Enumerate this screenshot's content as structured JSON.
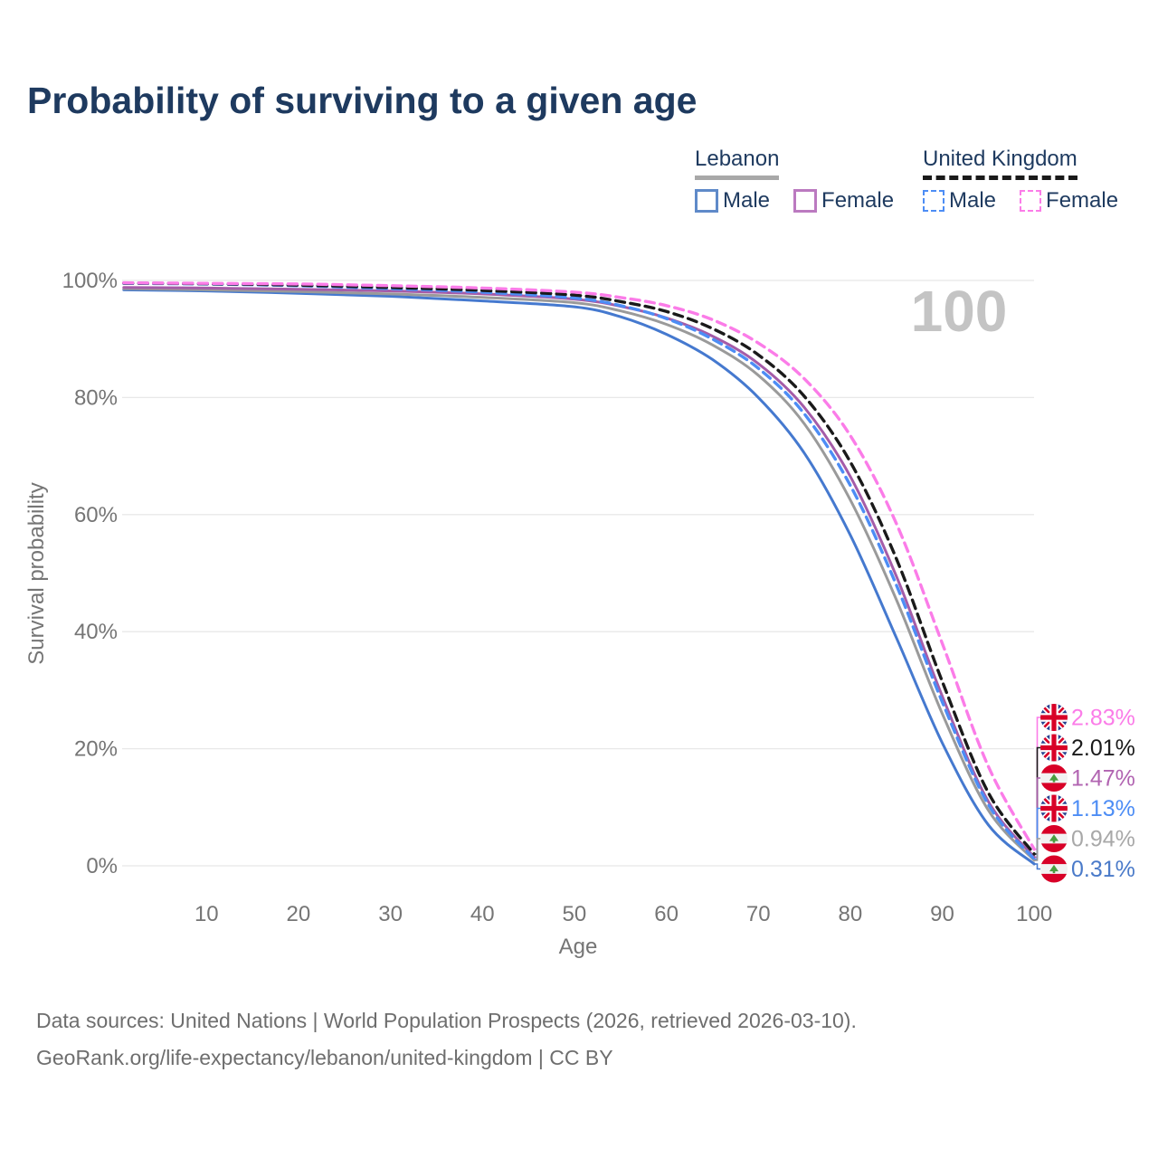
{
  "title": "Probability of surviving to a given age",
  "legend": {
    "groups": [
      {
        "name": "Lebanon",
        "line_style": "solid",
        "underline_color": "#a8a8a8",
        "items": [
          {
            "label": "Male",
            "color": "#5f8ac9"
          },
          {
            "label": "Female",
            "color": "#bb7ac0"
          }
        ]
      },
      {
        "name": "United Kingdom",
        "line_style": "dashed",
        "underline_color": "#1a1a1a",
        "items": [
          {
            "label": "Male",
            "color": "#4d8df5"
          },
          {
            "label": "Female",
            "color": "#fb7ce8"
          }
        ]
      }
    ]
  },
  "chart_data": {
    "type": "line",
    "title": "Probability of surviving to a given age",
    "xlabel": "Age",
    "ylabel": "Survival probability",
    "xlim": [
      0,
      100
    ],
    "ylim": [
      0,
      100
    ],
    "grid": "horizontal",
    "x_ticks": [
      10,
      20,
      30,
      40,
      50,
      60,
      70,
      80,
      90,
      100
    ],
    "y_ticks": [
      {
        "value": 0,
        "label": "0%"
      },
      {
        "value": 20,
        "label": "20%"
      },
      {
        "value": 40,
        "label": "40%"
      },
      {
        "value": 60,
        "label": "60%"
      },
      {
        "value": 80,
        "label": "80%"
      },
      {
        "value": 100,
        "label": "100%"
      }
    ],
    "hover_age_annotation": "100",
    "x": [
      1,
      10,
      20,
      30,
      40,
      50,
      55,
      60,
      65,
      70,
      75,
      80,
      85,
      90,
      95,
      100
    ],
    "series": [
      {
        "name": "Lebanon Male",
        "country": "Lebanon",
        "sex": "Male",
        "color": "#4579cf",
        "dash": false,
        "values": [
          98.4,
          98.2,
          97.8,
          97.3,
          96.5,
          95.5,
          93.8,
          90.8,
          86.5,
          80.0,
          70.5,
          56.5,
          39.0,
          21.0,
          7.0,
          0.31
        ]
      },
      {
        "name": "Lebanon All",
        "country": "Lebanon",
        "sex": "All",
        "color": "#9a9a9a",
        "dash": false,
        "values": [
          98.6,
          98.4,
          98.1,
          97.7,
          97.1,
          96.2,
          94.8,
          92.5,
          89.0,
          83.8,
          75.5,
          62.5,
          45.5,
          26.0,
          9.5,
          0.94
        ]
      },
      {
        "name": "Lebanon Female",
        "country": "Lebanon",
        "sex": "Female",
        "color": "#a55ca8",
        "dash": false,
        "values": [
          98.8,
          98.7,
          98.5,
          98.2,
          97.7,
          96.8,
          95.6,
          93.6,
          90.5,
          85.8,
          78.3,
          66.5,
          49.5,
          29.0,
          11.0,
          1.47
        ]
      },
      {
        "name": "United Kingdom Male",
        "country": "United Kingdom",
        "sex": "Male",
        "color": "#4d8df5",
        "dash": true,
        "values": [
          99.5,
          99.4,
          99.1,
          98.6,
          98.0,
          97.0,
          95.7,
          93.5,
          90.0,
          85.0,
          77.2,
          65.0,
          48.0,
          28.0,
          10.5,
          1.13
        ]
      },
      {
        "name": "United Kingdom All",
        "country": "United Kingdom",
        "sex": "All",
        "color": "#1a1a1a",
        "dash": true,
        "values": [
          99.55,
          99.45,
          99.2,
          98.8,
          98.3,
          97.5,
          96.4,
          94.7,
          91.8,
          87.3,
          80.2,
          69.0,
          52.5,
          31.5,
          12.5,
          2.01
        ]
      },
      {
        "name": "United Kingdom Female",
        "country": "United Kingdom",
        "sex": "Female",
        "color": "#fb7ce8",
        "dash": true,
        "values": [
          99.6,
          99.5,
          99.4,
          99.1,
          98.7,
          98.0,
          97.1,
          95.7,
          93.3,
          89.3,
          83.2,
          73.5,
          58.5,
          38.0,
          17.0,
          2.83
        ]
      }
    ],
    "end_labels": [
      {
        "flag": "uk",
        "text": "2.83%",
        "value": 2.83,
        "text_color": "#fb7ce8",
        "line_color": "#fb7ce8"
      },
      {
        "flag": "uk",
        "text": "2.01%",
        "value": 2.01,
        "text_color": "#1a1a1a",
        "line_color": "#1a1a1a"
      },
      {
        "flag": "lebanon",
        "text": "1.47%",
        "value": 1.47,
        "text_color": "#b164b1",
        "line_color": "#a55ca8"
      },
      {
        "flag": "uk",
        "text": "1.13%",
        "value": 1.13,
        "text_color": "#4d8df5",
        "line_color": "#4d8df5"
      },
      {
        "flag": "lebanon",
        "text": "0.94%",
        "value": 0.94,
        "text_color": "#a8a8a8",
        "line_color": "#9a9a9a"
      },
      {
        "flag": "lebanon",
        "text": "0.31%",
        "value": 0.31,
        "text_color": "#4a7ac9",
        "line_color": "#4579cf"
      }
    ]
  },
  "footer": {
    "line1": "Data sources: United Nations | World Population Prospects (2026, retrieved 2026-03-10).",
    "line2": "GeoRank.org/life-expectancy/lebanon/united-kingdom | CC BY"
  }
}
